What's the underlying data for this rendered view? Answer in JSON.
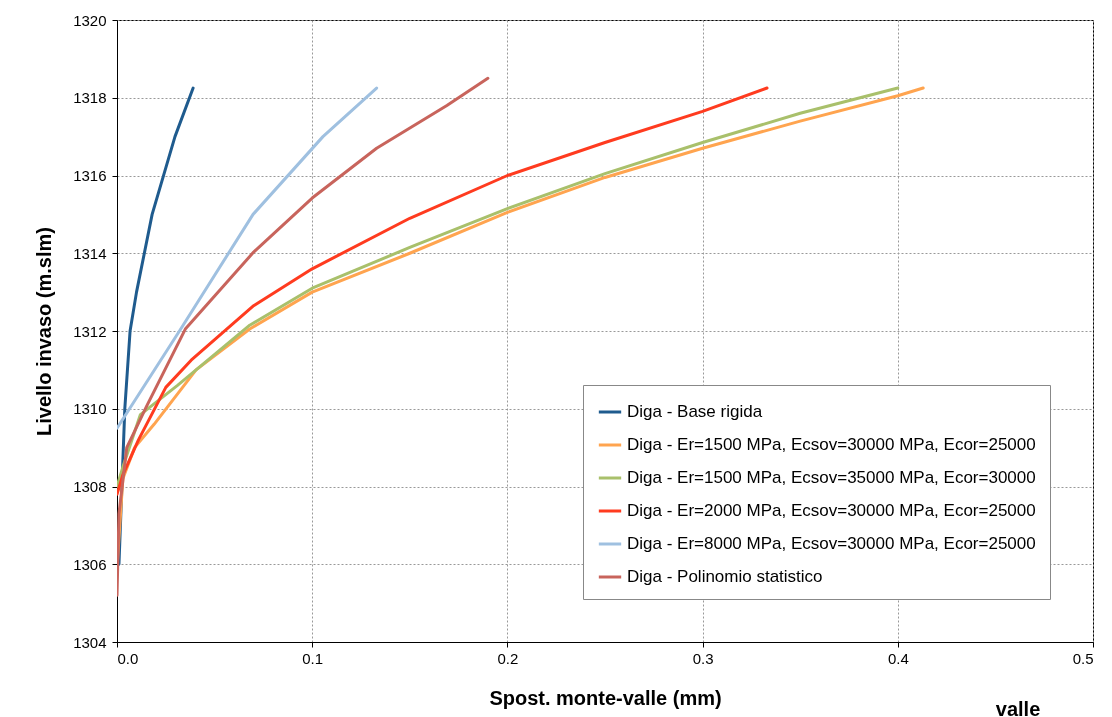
{
  "chart_data": {
    "type": "line",
    "xlabel": "Spost. monte-valle (mm)",
    "ylabel": "Livello invaso (m.slm)",
    "annotations": [
      "valle"
    ],
    "xlim": [
      0,
      0.5
    ],
    "xticks": [
      {
        "value": 0,
        "label": "0.0"
      },
      0.1,
      0.2,
      0.3,
      0.4,
      0.5
    ],
    "ylim": [
      1304,
      1320
    ],
    "yticks": [
      1304,
      1306,
      1308,
      1310,
      1312,
      1314,
      1316,
      1318,
      1320
    ],
    "grid": true,
    "legend": "bottom right",
    "marker": "none",
    "line_style": "solid",
    "series": [
      {
        "name": "Diga - Base rigida",
        "color": "#1f5b8e",
        "x": [
          0.001,
          0.004,
          0.0067,
          0.01,
          0.018,
          0.0297,
          0.039
        ],
        "values": [
          1306,
          1310,
          1312,
          1313,
          1315,
          1317,
          1318.25
        ]
      },
      {
        "name": "Diga - Er=1500 MPa, Ecsov=30000 MPa, Ecor=25000",
        "color": "#ffa44f",
        "x": [
          0,
          0.003,
          0.009,
          0.019,
          0.0405,
          0.068,
          0.1,
          0.15,
          0.2,
          0.25,
          0.3,
          0.35,
          0.4,
          0.413
        ],
        "values": [
          1305.9,
          1308.2,
          1309,
          1309.6,
          1311,
          1312.05,
          1313,
          1314,
          1315.05,
          1315.95,
          1316.7,
          1317.4,
          1318.05,
          1318.25
        ]
      },
      {
        "name": "Diga - Er=1500 MPa, Ecsov=35000 MPa, Ecor=30000",
        "color": "#a9c06b",
        "x": [
          0,
          0.003,
          0.012,
          0.031,
          0.068,
          0.1,
          0.15,
          0.2,
          0.25,
          0.3,
          0.35,
          0.4
        ],
        "values": [
          1308,
          1308.5,
          1309.85,
          1310.6,
          1312.15,
          1313.1,
          1314.15,
          1315.15,
          1316.05,
          1316.85,
          1317.6,
          1318.25
        ]
      },
      {
        "name": "Diga - Er=2000 MPa, Ecsov=30000 MPa, Ecor=25000",
        "color": "#ff3b1f",
        "x": [
          0,
          0.003,
          0.011,
          0.025,
          0.038,
          0.07,
          0.1,
          0.15,
          0.2,
          0.25,
          0.3,
          0.333
        ],
        "values": [
          1307.8,
          1308.3,
          1309.2,
          1310.55,
          1311.25,
          1312.65,
          1313.6,
          1314.9,
          1316,
          1316.85,
          1317.65,
          1318.25
        ]
      },
      {
        "name": "Diga - Er=8000 MPa, Ecsov=30000 MPa, Ecor=25000",
        "color": "#9fc0e0",
        "x": [
          0,
          0.032,
          0.0697,
          0.1055,
          0.133
        ],
        "values": [
          1309.5,
          1312,
          1315,
          1317,
          1318.25
        ]
      },
      {
        "name": "Diga - Polinomio statistico",
        "color": "#c8645c",
        "x": [
          0,
          0.001,
          0.005,
          0.015,
          0.035,
          0.07,
          0.1,
          0.133,
          0.169,
          0.19
        ],
        "values": [
          1305.2,
          1307.3,
          1309,
          1310.05,
          1312.05,
          1314.03,
          1315.42,
          1316.7,
          1317.8,
          1318.5
        ]
      }
    ]
  }
}
